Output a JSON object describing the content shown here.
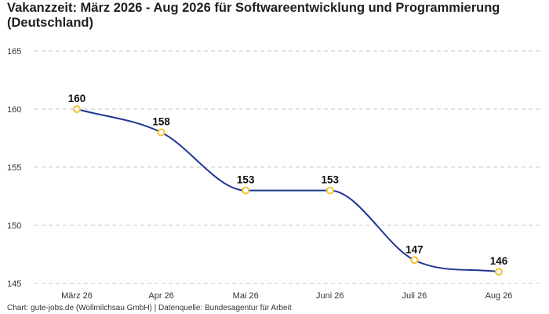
{
  "title": "Vakanzzeit: März 2026 - Aug 2026 für Softwareentwicklung und Programmierung (Deutschland)",
  "footer": "Chart: gute-jobs.de (Wollmilchsau GmbH) | Datenquelle: Bundesagentur für Arbeit",
  "colors": {
    "line": "#1f3591",
    "marker": "#f2c230",
    "grid": "#c8c8c8"
  },
  "chart_data": {
    "type": "line",
    "title": "Vakanzzeit: März 2026 - Aug 2026 für Softwareentwicklung und Programmierung (Deutschland)",
    "xlabel": "",
    "ylabel": "",
    "categories": [
      "März 26",
      "Apr 26",
      "Mai 26",
      "Juni 26",
      "Juli 26",
      "Aug 26"
    ],
    "values": [
      160,
      158,
      153,
      153,
      147,
      146
    ],
    "ylim": [
      145,
      165
    ],
    "yticks": [
      145,
      150,
      155,
      160,
      165
    ],
    "grid": true,
    "data_labels": true
  }
}
